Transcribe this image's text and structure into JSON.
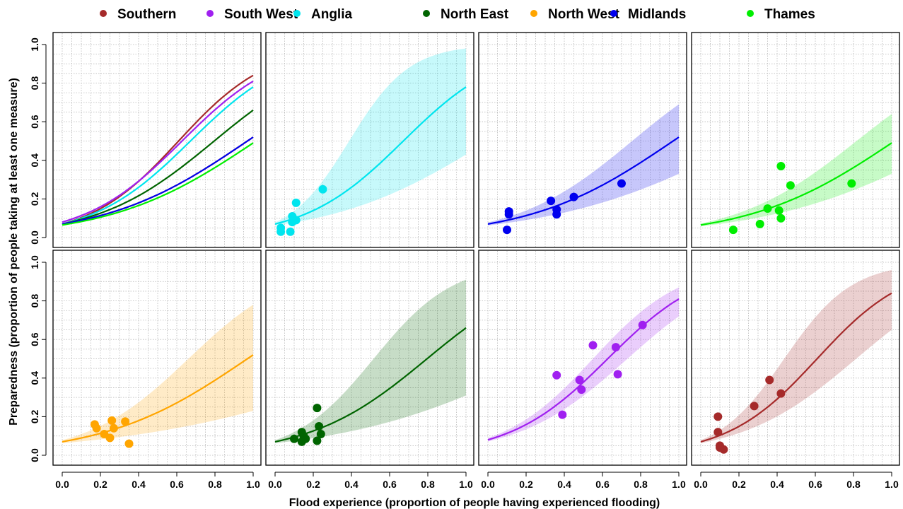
{
  "figure": {
    "xlabel": "Flood experience (proportion of people having experienced flooding)",
    "ylabel": "Preparedness (proportion of people taking at least one measure)"
  },
  "legend": [
    {
      "key": "southern",
      "label": "Southern",
      "color": "#a52a2a"
    },
    {
      "key": "southwest",
      "label": "South West",
      "color": "#a020f0"
    },
    {
      "key": "anglia",
      "label": "Anglia",
      "color": "#00e5ee"
    },
    {
      "key": "northeast",
      "label": "North East",
      "color": "#006400"
    },
    {
      "key": "northwest",
      "label": "North West",
      "color": "#ffa500"
    },
    {
      "key": "midlands",
      "label": "Midlands",
      "color": "#0000ee"
    },
    {
      "key": "thames",
      "label": "Thames",
      "color": "#00ee00"
    }
  ],
  "chart_data": {
    "type": "scatter",
    "layout": "2x4 panels",
    "xlim": [
      0,
      1
    ],
    "ylim": [
      0,
      1
    ],
    "xticks": [
      "0.0",
      "0.2",
      "0.4",
      "0.6",
      "0.8",
      "1.0"
    ],
    "yticks": [
      "0.0",
      "0.2",
      "0.4",
      "0.6",
      "0.8",
      "1.0"
    ],
    "grid": true,
    "legend_position": "top",
    "fitted_curves": {
      "description": "logistic fit, value at x=0 and x=1",
      "southern": {
        "y0": 0.07,
        "y1": 0.84,
        "ci_x1": [
          0.65,
          0.96
        ]
      },
      "southwest": {
        "y0": 0.08,
        "y1": 0.81,
        "ci_x1": [
          0.72,
          0.87
        ]
      },
      "anglia": {
        "y0": 0.07,
        "y1": 0.78,
        "ci_x1": [
          0.43,
          0.98
        ]
      },
      "northeast": {
        "y0": 0.07,
        "y1": 0.66,
        "ci_x1": [
          0.31,
          0.91
        ]
      },
      "northwest": {
        "y0": 0.07,
        "y1": 0.52,
        "ci_x1": [
          0.23,
          0.78
        ]
      },
      "midlands": {
        "y0": 0.07,
        "y1": 0.52,
        "ci_x1": [
          0.33,
          0.69
        ]
      },
      "thames": {
        "y0": 0.065,
        "y1": 0.49,
        "ci_x1": [
          0.33,
          0.64
        ]
      }
    },
    "panels": [
      {
        "row": 0,
        "col": 0,
        "type": "line",
        "series": [
          "southern",
          "southwest",
          "anglia",
          "northeast",
          "northwest",
          "midlands",
          "thames"
        ],
        "points": []
      },
      {
        "row": 0,
        "col": 1,
        "series": [
          "anglia"
        ],
        "points": [
          [
            0.03,
            0.03
          ],
          [
            0.03,
            0.05
          ],
          [
            0.08,
            0.03
          ],
          [
            0.09,
            0.08
          ],
          [
            0.09,
            0.11
          ],
          [
            0.11,
            0.09
          ],
          [
            0.11,
            0.18
          ],
          [
            0.25,
            0.25
          ]
        ]
      },
      {
        "row": 0,
        "col": 2,
        "series": [
          "midlands"
        ],
        "points": [
          [
            0.1,
            0.04
          ],
          [
            0.11,
            0.12
          ],
          [
            0.11,
            0.135
          ],
          [
            0.33,
            0.19
          ],
          [
            0.36,
            0.12
          ],
          [
            0.36,
            0.145
          ],
          [
            0.45,
            0.21
          ],
          [
            0.7,
            0.28
          ]
        ]
      },
      {
        "row": 0,
        "col": 3,
        "series": [
          "thames"
        ],
        "points": [
          [
            0.17,
            0.04
          ],
          [
            0.31,
            0.07
          ],
          [
            0.35,
            0.15
          ],
          [
            0.41,
            0.14
          ],
          [
            0.42,
            0.1
          ],
          [
            0.42,
            0.37
          ],
          [
            0.47,
            0.27
          ],
          [
            0.79,
            0.28
          ]
        ]
      },
      {
        "row": 1,
        "col": 0,
        "series": [
          "northwest"
        ],
        "points": [
          [
            0.17,
            0.16
          ],
          [
            0.18,
            0.14
          ],
          [
            0.22,
            0.11
          ],
          [
            0.25,
            0.09
          ],
          [
            0.26,
            0.18
          ],
          [
            0.27,
            0.14
          ],
          [
            0.33,
            0.175
          ],
          [
            0.35,
            0.06
          ]
        ]
      },
      {
        "row": 1,
        "col": 1,
        "series": [
          "northeast"
        ],
        "points": [
          [
            0.1,
            0.085
          ],
          [
            0.14,
            0.12
          ],
          [
            0.14,
            0.07
          ],
          [
            0.15,
            0.1
          ],
          [
            0.16,
            0.085
          ],
          [
            0.22,
            0.075
          ],
          [
            0.22,
            0.245
          ],
          [
            0.23,
            0.15
          ],
          [
            0.24,
            0.11
          ]
        ]
      },
      {
        "row": 1,
        "col": 2,
        "series": [
          "southwest"
        ],
        "points": [
          [
            0.36,
            0.415
          ],
          [
            0.39,
            0.21
          ],
          [
            0.48,
            0.39
          ],
          [
            0.49,
            0.34
          ],
          [
            0.55,
            0.57
          ],
          [
            0.67,
            0.56
          ],
          [
            0.68,
            0.42
          ],
          [
            0.81,
            0.675
          ]
        ]
      },
      {
        "row": 1,
        "col": 3,
        "series": [
          "southern"
        ],
        "points": [
          [
            0.09,
            0.2
          ],
          [
            0.09,
            0.12
          ],
          [
            0.1,
            0.05
          ],
          [
            0.1,
            0.04
          ],
          [
            0.12,
            0.03
          ],
          [
            0.28,
            0.255
          ],
          [
            0.36,
            0.39
          ],
          [
            0.42,
            0.32
          ]
        ]
      }
    ]
  }
}
